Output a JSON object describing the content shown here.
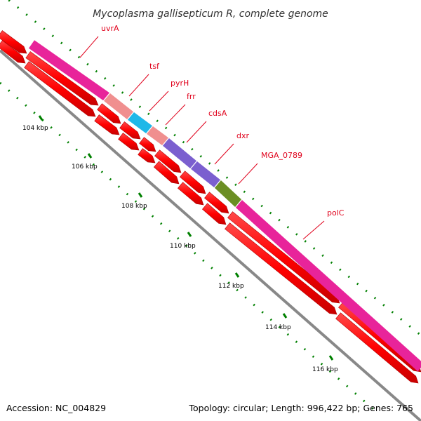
{
  "title": "Mycoplasma gallisepticum R, complete genome",
  "footer": {
    "accession": "Accession: NC_004829",
    "topology": "Topology: circular; Length: 996,422 bp; Genes: 765"
  },
  "ticks": [
    "104 kbp",
    "106 kbp",
    "108 kbp",
    "110 kbp",
    "112 kbp",
    "114 kbp",
    "116 kbp"
  ],
  "genes": [
    {
      "name": "uvrA",
      "color": "#e8249a"
    },
    {
      "name": "tsf",
      "color": "#f08f8f"
    },
    {
      "name": "pyrH",
      "color": "#1fb8e8"
    },
    {
      "name": "frr",
      "color": "#f08f8f"
    },
    {
      "name": "cdsA",
      "color": "#7b5fcf"
    },
    {
      "name": "dxr",
      "color": "#7b5fcf"
    },
    {
      "name": "MGA_0789",
      "color": "#6b8e23"
    },
    {
      "name": "polC",
      "color": "#e8249a"
    }
  ],
  "colors": {
    "cds_arrow": "#ff0000",
    "backbone": "#888888",
    "tick_mark": "#008000",
    "label_line": "#e0001b"
  }
}
